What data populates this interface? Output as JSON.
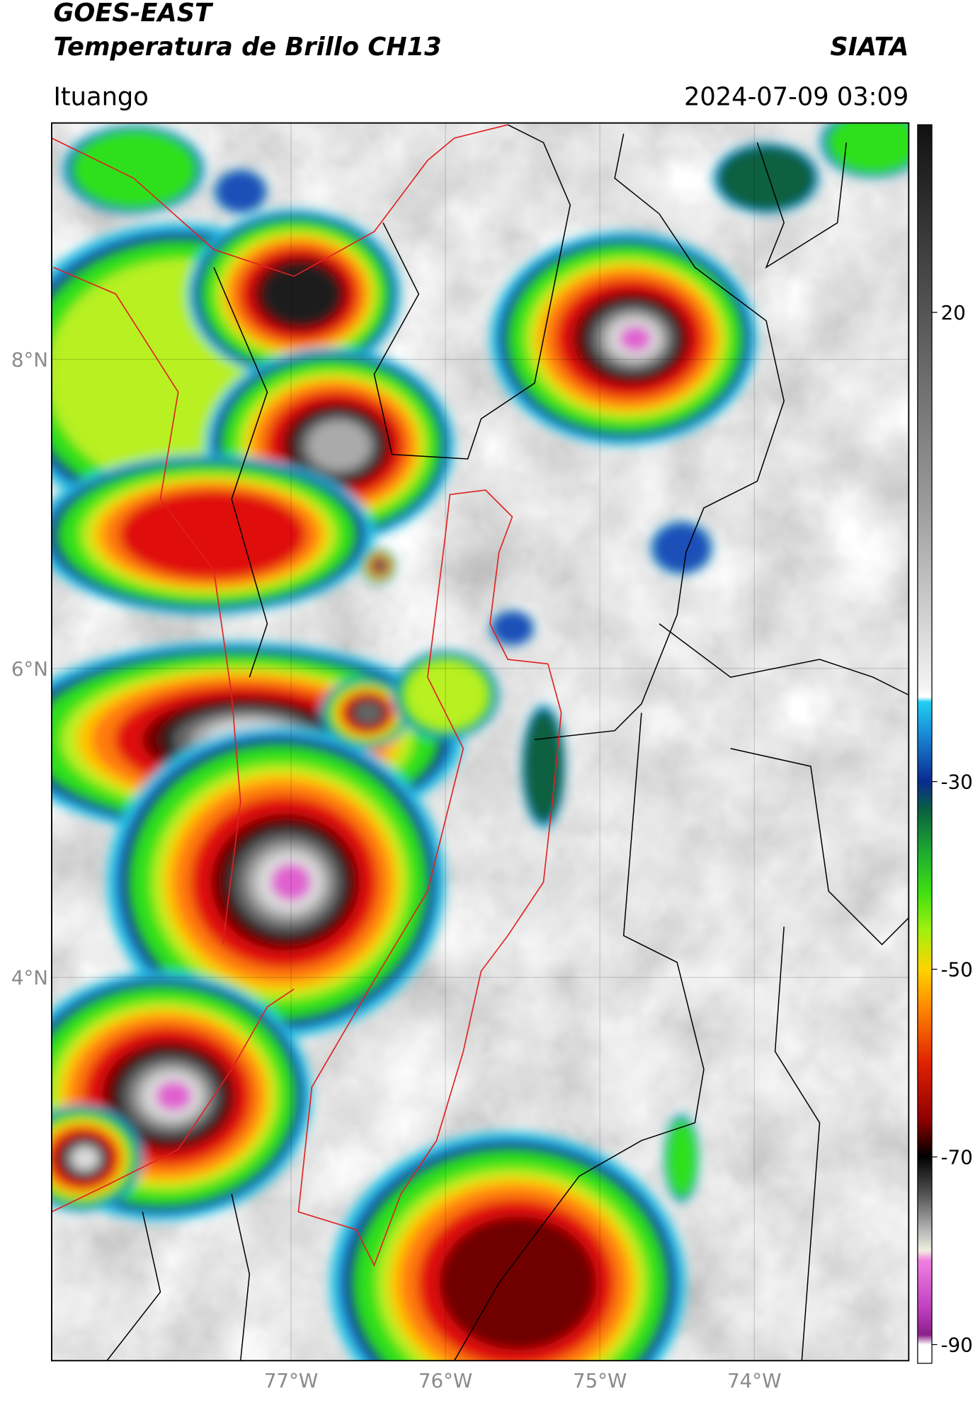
{
  "header": {
    "title": "GOES-EAST",
    "subtitle": "Temperatura de Brillo CH13",
    "source": "SIATA",
    "location": "Ituango",
    "datetime": "2024-07-09 03:09"
  },
  "map": {
    "xlim": [
      -78.55,
      -73.0
    ],
    "ylim": [
      1.52,
      9.53
    ],
    "xticks": [
      {
        "value": -77,
        "label": "77°W"
      },
      {
        "value": -76,
        "label": "76°W"
      },
      {
        "value": -75,
        "label": "75°W"
      },
      {
        "value": -74,
        "label": "74°W"
      }
    ],
    "yticks": [
      {
        "value": 8,
        "label": "8°N"
      },
      {
        "value": 6,
        "label": "6°N"
      },
      {
        "value": 4,
        "label": "4°N"
      }
    ],
    "grid": true
  },
  "colorbar": {
    "clim": [
      -92,
      40
    ],
    "ticks": [
      20,
      -30,
      -50,
      -70,
      -90
    ]
  }
}
